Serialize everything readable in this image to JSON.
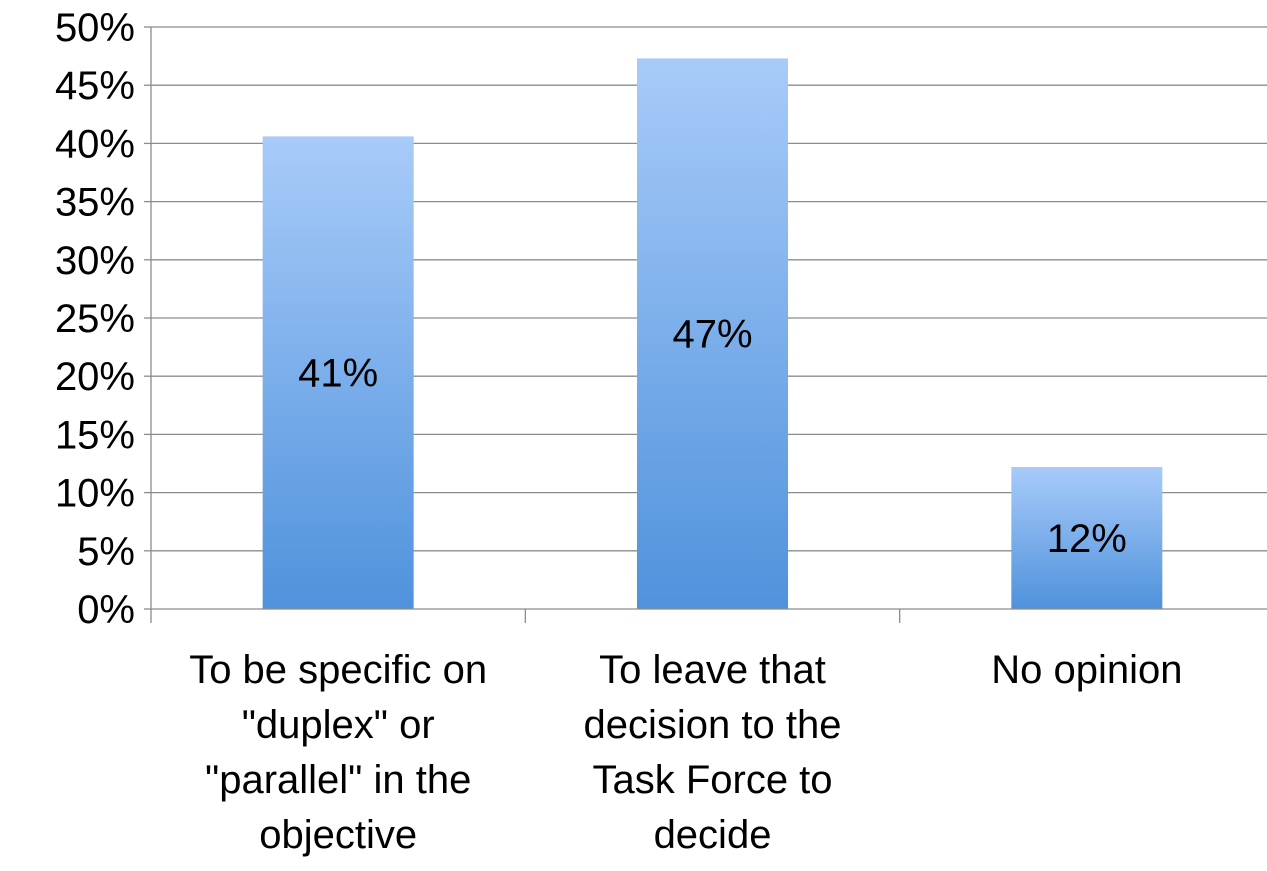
{
  "chart_data": {
    "type": "bar",
    "categories": [
      [
        "To be specific on",
        "\"duplex\" or",
        "\"parallel\" in the",
        "objective"
      ],
      [
        "To leave that",
        "decision to the",
        "Task Force to",
        "decide"
      ],
      [
        "No opinion"
      ]
    ],
    "values": [
      40.6,
      47.3,
      12.2
    ],
    "data_labels": [
      "41%",
      "47%",
      "12%"
    ],
    "ylim": [
      0,
      50
    ],
    "yticks": [
      "0%",
      "5%",
      "10%",
      "15%",
      "20%",
      "25%",
      "30%",
      "35%",
      "40%",
      "45%",
      "50%"
    ],
    "grid": true,
    "legend": "none",
    "colors": {
      "bar_top": "#a8cbf9",
      "bar_bottom": "#4f92dc",
      "grid": "#8c8c8c",
      "axis": "#8c8c8c",
      "text": "#000000"
    }
  }
}
